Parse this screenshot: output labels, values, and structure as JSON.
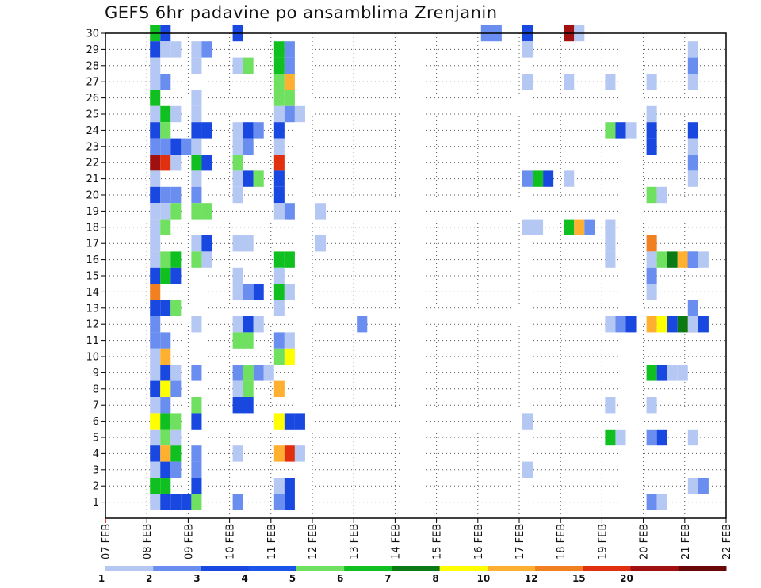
{
  "chart_data": {
    "type": "heatmap",
    "title": "GEFS 6hr padavine po ansamblima Zrenjanin",
    "x_tick_labels": [
      "07 FEB",
      "08 FEB",
      "09 FEB",
      "10 FEB",
      "11 FEB",
      "12 FEB",
      "13 FEB",
      "14 FEB",
      "15 FEB",
      "16 FEB",
      "17 FEB",
      "18 FEB",
      "19 FEB",
      "20 FEB",
      "21 FEB",
      "22 FEB"
    ],
    "y_tick_labels": [
      "1",
      "2",
      "3",
      "4",
      "5",
      "6",
      "7",
      "8",
      "9",
      "10",
      "11",
      "12",
      "13",
      "14",
      "15",
      "16",
      "17",
      "18",
      "19",
      "20",
      "21",
      "22",
      "23",
      "24",
      "25",
      "26",
      "27",
      "28",
      "29",
      "30"
    ],
    "xlim": [
      "07 FEB",
      "22 FEB"
    ],
    "ylim": [
      0,
      30
    ],
    "grid": true,
    "colorbar": {
      "levels": [
        "1",
        "2",
        "3",
        "4",
        "5",
        "6",
        "7",
        "8",
        "10",
        "12",
        "15",
        "20"
      ],
      "colors": [
        "#b5c8f4",
        "#6a8ef0",
        "#1848e0",
        "#1a54e8",
        "#70e060",
        "#10c020",
        "#0a7a14",
        "#ffff00",
        "#ffb030",
        "#f08020",
        "#e03010",
        "#a01010",
        "#6a0808"
      ]
    },
    "cells_note": "value class index per cell: 1=1-2, 2=2-3, 3=3-4, 4=4-5, 5=5-6, 6=6-7, 7=7-8, 8=8-10, 9=10-12, 10=12-15, 11=15-20, 12=>20",
    "cells": [
      [
        1,
        30,
        6
      ],
      [
        1,
        30,
        3
      ],
      [
        3,
        30,
        3
      ],
      [
        9,
        30,
        2
      ],
      [
        9,
        30,
        2
      ],
      [
        10,
        30,
        3
      ],
      [
        11,
        30,
        12
      ],
      [
        11,
        30,
        1
      ],
      [
        1,
        29,
        3
      ],
      [
        1,
        29,
        1
      ],
      [
        1,
        29,
        1
      ],
      [
        2,
        29,
        1
      ],
      [
        2,
        29,
        2
      ],
      [
        4,
        29,
        6
      ],
      [
        4,
        29,
        2
      ],
      [
        10,
        29,
        1
      ],
      [
        14,
        29,
        1
      ],
      [
        1,
        28,
        1
      ],
      [
        2,
        28,
        1
      ],
      [
        3,
        28,
        1
      ],
      [
        3,
        28,
        5
      ],
      [
        4,
        28,
        6
      ],
      [
        4,
        28,
        2
      ],
      [
        14,
        28,
        2
      ],
      [
        1,
        27,
        1
      ],
      [
        1,
        27,
        2
      ],
      [
        4,
        27,
        5
      ],
      [
        4,
        27,
        9
      ],
      [
        10,
        27,
        1
      ],
      [
        11,
        27,
        1
      ],
      [
        12,
        27,
        1
      ],
      [
        13,
        27,
        1
      ],
      [
        14,
        27,
        1
      ],
      [
        1,
        26,
        6
      ],
      [
        2,
        26,
        1
      ],
      [
        4,
        26,
        5
      ],
      [
        4,
        26,
        5
      ],
      [
        1,
        25,
        1
      ],
      [
        1,
        25,
        6
      ],
      [
        1,
        25,
        1
      ],
      [
        2,
        25,
        1
      ],
      [
        4,
        25,
        1
      ],
      [
        4,
        25,
        2
      ],
      [
        4,
        25,
        1
      ],
      [
        13,
        25,
        1
      ],
      [
        1,
        24,
        3
      ],
      [
        1,
        24,
        5
      ],
      [
        2,
        24,
        3
      ],
      [
        2,
        24,
        3
      ],
      [
        3,
        24,
        1
      ],
      [
        3,
        24,
        3
      ],
      [
        3,
        24,
        2
      ],
      [
        4,
        24,
        3
      ],
      [
        12,
        24,
        5
      ],
      [
        12,
        24,
        3
      ],
      [
        12,
        24,
        1
      ],
      [
        13,
        24,
        3
      ],
      [
        14,
        24,
        3
      ],
      [
        1,
        23,
        2
      ],
      [
        1,
        23,
        2
      ],
      [
        1,
        23,
        3
      ],
      [
        1,
        23,
        2
      ],
      [
        2,
        23,
        1
      ],
      [
        3,
        23,
        1
      ],
      [
        3,
        23,
        2
      ],
      [
        4,
        23,
        1
      ],
      [
        13,
        23,
        3
      ],
      [
        14,
        23,
        1
      ],
      [
        1,
        22,
        12
      ],
      [
        1,
        22,
        11
      ],
      [
        1,
        22,
        1
      ],
      [
        2,
        22,
        6
      ],
      [
        2,
        22,
        3
      ],
      [
        3,
        22,
        5
      ],
      [
        4,
        22,
        11
      ],
      [
        14,
        22,
        2
      ],
      [
        1,
        21,
        1
      ],
      [
        2,
        21,
        1
      ],
      [
        3,
        21,
        1
      ],
      [
        3,
        21,
        3
      ],
      [
        3,
        21,
        5
      ],
      [
        4,
        21,
        3
      ],
      [
        10,
        21,
        2
      ],
      [
        10,
        21,
        6
      ],
      [
        10,
        21,
        3
      ],
      [
        11,
        21,
        1
      ],
      [
        14,
        21,
        1
      ],
      [
        1,
        20,
        3
      ],
      [
        1,
        20,
        2
      ],
      [
        1,
        20,
        2
      ],
      [
        2,
        20,
        2
      ],
      [
        3,
        20,
        1
      ],
      [
        4,
        20,
        3
      ],
      [
        13,
        20,
        5
      ],
      [
        13,
        20,
        1
      ],
      [
        1,
        19,
        1
      ],
      [
        1,
        19,
        1
      ],
      [
        1,
        19,
        5
      ],
      [
        2,
        19,
        5
      ],
      [
        2,
        19,
        5
      ],
      [
        4,
        19,
        1
      ],
      [
        4,
        19,
        2
      ],
      [
        5,
        19,
        1
      ],
      [
        1,
        18,
        1
      ],
      [
        1,
        18,
        5
      ],
      [
        10,
        18,
        1
      ],
      [
        10,
        18,
        1
      ],
      [
        11,
        18,
        6
      ],
      [
        11,
        18,
        9
      ],
      [
        11,
        18,
        2
      ],
      [
        12,
        18,
        1
      ],
      [
        1,
        17,
        1
      ],
      [
        2,
        17,
        1
      ],
      [
        2,
        17,
        3
      ],
      [
        3,
        17,
        1
      ],
      [
        3,
        17,
        1
      ],
      [
        5,
        17,
        1
      ],
      [
        12,
        17,
        1
      ],
      [
        13,
        17,
        10
      ],
      [
        1,
        16,
        1
      ],
      [
        1,
        16,
        5
      ],
      [
        1,
        16,
        6
      ],
      [
        2,
        16,
        5
      ],
      [
        2,
        16,
        1
      ],
      [
        4,
        16,
        6
      ],
      [
        4,
        16,
        6
      ],
      [
        12,
        16,
        1
      ],
      [
        13,
        16,
        1
      ],
      [
        13,
        16,
        5
      ],
      [
        13,
        16,
        7
      ],
      [
        13,
        16,
        9
      ],
      [
        13,
        16,
        3
      ],
      [
        14,
        16,
        2
      ],
      [
        14,
        16,
        1
      ],
      [
        1,
        15,
        3
      ],
      [
        1,
        15,
        6
      ],
      [
        1,
        15,
        3
      ],
      [
        3,
        15,
        1
      ],
      [
        4,
        15,
        1
      ],
      [
        13,
        15,
        2
      ],
      [
        1,
        14,
        10
      ],
      [
        3,
        14,
        1
      ],
      [
        3,
        14,
        2
      ],
      [
        3,
        14,
        3
      ],
      [
        4,
        14,
        6
      ],
      [
        4,
        14,
        1
      ],
      [
        13,
        14,
        1
      ],
      [
        1,
        13,
        3
      ],
      [
        1,
        13,
        3
      ],
      [
        1,
        13,
        5
      ],
      [
        4,
        13,
        1
      ],
      [
        14,
        13,
        2
      ],
      [
        1,
        12,
        2
      ],
      [
        2,
        12,
        1
      ],
      [
        3,
        12,
        1
      ],
      [
        3,
        12,
        3
      ],
      [
        3,
        12,
        1
      ],
      [
        6,
        12,
        2
      ],
      [
        12,
        12,
        1
      ],
      [
        12,
        12,
        2
      ],
      [
        12,
        12,
        3
      ],
      [
        13,
        12,
        9
      ],
      [
        13,
        12,
        8
      ],
      [
        13,
        12,
        3
      ],
      [
        13,
        12,
        7
      ],
      [
        13,
        12,
        11
      ],
      [
        13,
        12,
        3
      ],
      [
        14,
        12,
        1
      ],
      [
        1,
        11,
        2
      ],
      [
        1,
        11,
        2
      ],
      [
        3,
        11,
        5
      ],
      [
        3,
        11,
        5
      ],
      [
        4,
        11,
        2
      ],
      [
        4,
        11,
        1
      ],
      [
        1,
        10,
        1
      ],
      [
        1,
        10,
        9
      ],
      [
        4,
        10,
        5
      ],
      [
        4,
        10,
        8
      ],
      [
        1,
        9,
        1
      ],
      [
        1,
        9,
        3
      ],
      [
        1,
        9,
        1
      ],
      [
        2,
        9,
        2
      ],
      [
        3,
        9,
        2
      ],
      [
        3,
        9,
        5
      ],
      [
        3,
        9,
        2
      ],
      [
        3,
        9,
        1
      ],
      [
        13,
        9,
        6
      ],
      [
        13,
        9,
        3
      ],
      [
        13,
        9,
        1
      ],
      [
        13,
        9,
        1
      ],
      [
        1,
        8,
        3
      ],
      [
        1,
        8,
        8
      ],
      [
        1,
        8,
        2
      ],
      [
        3,
        8,
        1
      ],
      [
        3,
        8,
        5
      ],
      [
        4,
        8,
        9
      ],
      [
        1,
        7,
        1
      ],
      [
        1,
        7,
        2
      ],
      [
        2,
        7,
        5
      ],
      [
        3,
        7,
        3
      ],
      [
        3,
        7,
        3
      ],
      [
        12,
        7,
        1
      ],
      [
        13,
        7,
        1
      ],
      [
        15,
        7,
        6
      ],
      [
        1,
        6,
        8
      ],
      [
        1,
        6,
        6
      ],
      [
        1,
        6,
        5
      ],
      [
        2,
        6,
        3
      ],
      [
        4,
        6,
        8
      ],
      [
        4,
        6,
        3
      ],
      [
        4,
        6,
        3
      ],
      [
        10,
        6,
        1
      ],
      [
        15,
        6,
        5
      ],
      [
        15,
        6,
        1
      ],
      [
        1,
        5,
        1
      ],
      [
        1,
        5,
        5
      ],
      [
        1,
        5,
        1
      ],
      [
        12,
        5,
        6
      ],
      [
        12,
        5,
        1
      ],
      [
        13,
        5,
        2
      ],
      [
        13,
        5,
        3
      ],
      [
        14,
        5,
        1
      ],
      [
        1,
        4,
        3
      ],
      [
        1,
        4,
        9
      ],
      [
        1,
        4,
        6
      ],
      [
        2,
        4,
        2
      ],
      [
        3,
        4,
        1
      ],
      [
        4,
        4,
        9
      ],
      [
        4,
        4,
        11
      ],
      [
        4,
        4,
        1
      ],
      [
        1,
        3,
        1
      ],
      [
        1,
        3,
        3
      ],
      [
        1,
        3,
        2
      ],
      [
        2,
        3,
        2
      ],
      [
        10,
        3,
        1
      ],
      [
        1,
        2,
        6
      ],
      [
        1,
        2,
        6
      ],
      [
        2,
        2,
        3
      ],
      [
        4,
        2,
        1
      ],
      [
        4,
        2,
        3
      ],
      [
        14,
        2,
        1
      ],
      [
        14,
        2,
        2
      ],
      [
        1,
        1,
        1
      ],
      [
        1,
        1,
        3
      ],
      [
        1,
        1,
        3
      ],
      [
        1,
        1,
        3
      ],
      [
        2,
        1,
        5
      ],
      [
        3,
        1,
        2
      ],
      [
        4,
        1,
        2
      ],
      [
        4,
        1,
        3
      ],
      [
        13,
        1,
        2
      ],
      [
        13,
        1,
        1
      ],
      [
        15,
        1,
        6
      ],
      [
        15,
        1,
        2
      ]
    ]
  }
}
